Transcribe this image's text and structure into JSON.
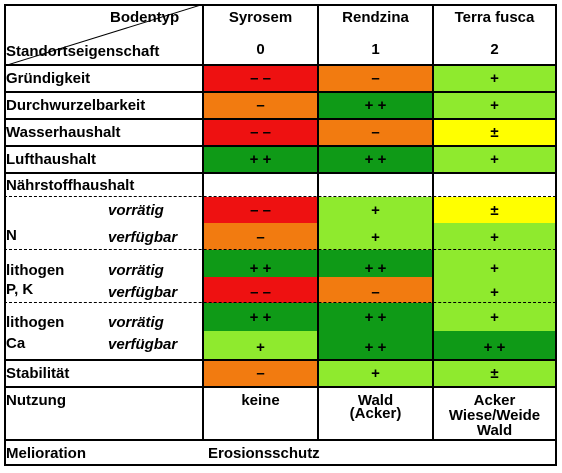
{
  "header": {
    "bodentyp_label": "Bodentyp",
    "standort_label": "Standortseigenschaft",
    "columns": [
      {
        "name": "Syrosem",
        "code": "0"
      },
      {
        "name": "Rendzina",
        "code": "1"
      },
      {
        "name": "Terra fusca",
        "code": "2"
      }
    ]
  },
  "colors": {
    "red": "#ee1111",
    "orange": "#f27b10",
    "dark_green": "#0f9a17",
    "light_green": "#8fea2e",
    "yellow": "#ffff00",
    "white": "#ffffff"
  },
  "rows": {
    "gruendigkeit": {
      "label": "Gründigkeit",
      "values": [
        "– –",
        "–",
        "+"
      ]
    },
    "durchwurzelbarkeit": {
      "label": "Durchwurzelbarkeit",
      "values": [
        "–",
        "+ +",
        "+"
      ]
    },
    "wasserhaushalt": {
      "label": "Wasserhaushalt",
      "values": [
        "– –",
        "–",
        "±"
      ]
    },
    "lufthaushalt": {
      "label": "Lufthaushalt",
      "values": [
        "+ +",
        "+ +",
        "+"
      ]
    },
    "naehrstoffhaushalt": {
      "label": "Nährstoffhaushalt"
    },
    "n": {
      "label": "N",
      "sub": [
        {
          "label": "vorrätig",
          "values": [
            "– –",
            "+",
            "±"
          ]
        },
        {
          "label": "verfügbar",
          "values": [
            "–",
            "+",
            "+"
          ]
        }
      ]
    },
    "pk": {
      "label_line1": "lithogen",
      "label_line2": "P, K",
      "sub": [
        {
          "label": "vorrätig",
          "values": [
            "+ +",
            "+ +",
            "+"
          ]
        },
        {
          "label": "verfügbar",
          "values": [
            "– –",
            "–",
            "+"
          ]
        }
      ]
    },
    "ca": {
      "label_line1": "lithogen",
      "label_line2": "Ca",
      "sub": [
        {
          "label": "vorrätig",
          "values": [
            "+ +",
            "+ +",
            "+"
          ]
        },
        {
          "label": "verfügbar",
          "values": [
            "+",
            "+ +",
            "+ +"
          ]
        }
      ]
    },
    "stabilitaet": {
      "label": "Stabilität",
      "values": [
        "–",
        "+",
        "±"
      ]
    },
    "nutzung": {
      "label": "Nutzung",
      "syrosem": "keine",
      "rendzina_line1": "Wald",
      "rendzina_line2": "(Acker)",
      "terra_line1": "Acker",
      "terra_line2": "Wiese/Weide",
      "terra_line3": "Wald"
    },
    "melioration": {
      "label": "Melioration",
      "value": "Erosionsschutz"
    }
  }
}
